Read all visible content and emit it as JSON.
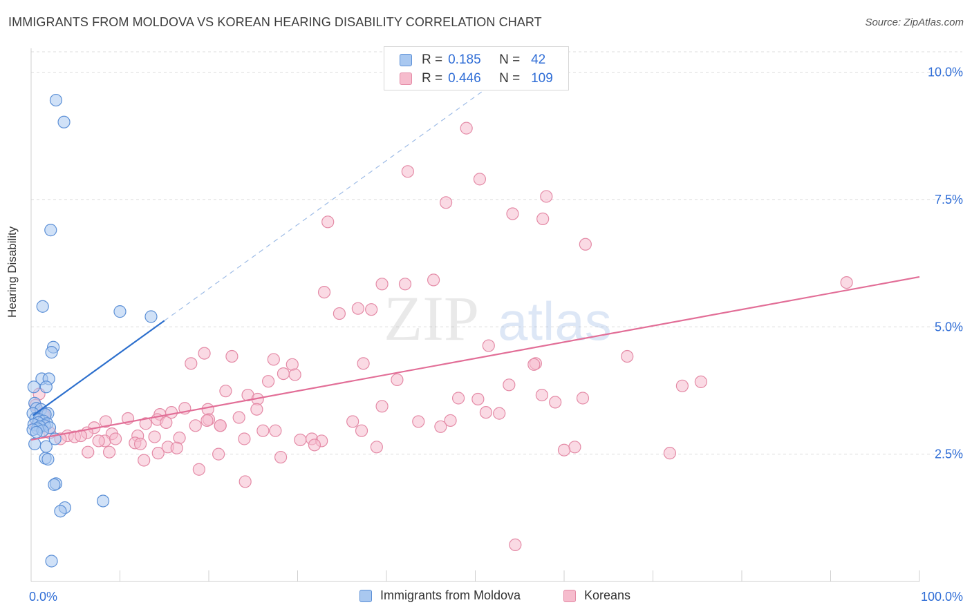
{
  "header": {
    "title": "IMMIGRANTS FROM MOLDOVA VS KOREAN HEARING DISABILITY CORRELATION CHART",
    "source": "Source: ZipAtlas.com"
  },
  "watermark": {
    "zip": "ZIP",
    "atlas": "atlas"
  },
  "legend_box": {
    "rows": [
      {
        "r_label": "R =",
        "r_value": "0.185",
        "n_label": "N =",
        "n_value": "42"
      },
      {
        "r_label": "R =",
        "r_value": "0.446",
        "n_label": "N =",
        "n_value": "109"
      }
    ]
  },
  "colors": {
    "blue_fill": "#a9c8f0",
    "blue_stroke": "#5b8fd6",
    "blue_line": "#2c6fcd",
    "pink_fill": "#f6bccd",
    "pink_stroke": "#e48aa6",
    "pink_line": "#e26e97",
    "grid": "#dcdcdc",
    "tick_label": "#2f6dd6"
  },
  "chart_data": {
    "type": "scatter",
    "title": "IMMIGRANTS FROM MOLDOVA VS KOREAN HEARING DISABILITY CORRELATION CHART",
    "xlabel": "",
    "ylabel": "Hearing Disability",
    "xlim": [
      0,
      100
    ],
    "ylim": [
      0,
      10.4
    ],
    "x_tick_labels": [
      "0.0%",
      "100.0%"
    ],
    "y_ticks": [
      2.5,
      5.0,
      7.5,
      10.0
    ],
    "y_tick_labels": [
      "2.5%",
      "5.0%",
      "7.5%",
      "10.0%"
    ],
    "series": [
      {
        "name": "Immigrants from Moldova",
        "R": 0.185,
        "N": 42,
        "trend": {
          "x0": 0.2,
          "y0": 3.26,
          "x1": 15.0,
          "y1": 5.12,
          "dash_to_x": 53.0,
          "dash_to_y": 9.9
        },
        "points": [
          [
            2.8,
            9.45
          ],
          [
            3.7,
            9.02
          ],
          [
            2.2,
            6.9
          ],
          [
            1.3,
            5.4
          ],
          [
            10.0,
            5.3
          ],
          [
            13.5,
            5.2
          ],
          [
            2.5,
            4.6
          ],
          [
            2.3,
            4.5
          ],
          [
            1.2,
            3.98
          ],
          [
            2.0,
            3.98
          ],
          [
            1.7,
            3.82
          ],
          [
            0.3,
            3.82
          ],
          [
            0.4,
            3.5
          ],
          [
            0.6,
            3.4
          ],
          [
            1.1,
            3.38
          ],
          [
            0.2,
            3.3
          ],
          [
            1.9,
            3.3
          ],
          [
            1.6,
            3.28
          ],
          [
            0.5,
            3.2
          ],
          [
            0.9,
            3.18
          ],
          [
            1.4,
            3.15
          ],
          [
            0.8,
            3.12
          ],
          [
            1.8,
            3.1
          ],
          [
            0.3,
            3.08
          ],
          [
            1.5,
            3.06
          ],
          [
            1.0,
            3.04
          ],
          [
            2.1,
            3.02
          ],
          [
            0.7,
            3.0
          ],
          [
            0.2,
            2.98
          ],
          [
            1.3,
            2.96
          ],
          [
            0.6,
            2.93
          ],
          [
            2.7,
            2.8
          ],
          [
            0.4,
            2.7
          ],
          [
            1.7,
            2.65
          ],
          [
            1.6,
            2.42
          ],
          [
            1.9,
            2.4
          ],
          [
            2.8,
            1.92
          ],
          [
            2.6,
            1.9
          ],
          [
            8.1,
            1.58
          ],
          [
            3.8,
            1.45
          ],
          [
            3.3,
            1.38
          ],
          [
            2.3,
            0.4
          ]
        ]
      },
      {
        "name": "Koreans",
        "R": 0.446,
        "N": 109,
        "trend": {
          "x0": 0.0,
          "y0": 2.78,
          "x1": 100.0,
          "y1": 5.98
        },
        "points": [
          [
            49.0,
            8.9
          ],
          [
            42.4,
            8.05
          ],
          [
            50.5,
            7.9
          ],
          [
            58.0,
            7.56
          ],
          [
            46.7,
            7.44
          ],
          [
            54.2,
            7.22
          ],
          [
            57.6,
            7.12
          ],
          [
            33.4,
            7.06
          ],
          [
            62.4,
            6.62
          ],
          [
            91.8,
            5.87
          ],
          [
            45.3,
            5.92
          ],
          [
            42.1,
            5.84
          ],
          [
            39.5,
            5.84
          ],
          [
            33.0,
            5.68
          ],
          [
            36.8,
            5.36
          ],
          [
            38.3,
            5.34
          ],
          [
            34.7,
            5.26
          ],
          [
            51.5,
            4.63
          ],
          [
            19.5,
            4.48
          ],
          [
            22.6,
            4.42
          ],
          [
            67.1,
            4.42
          ],
          [
            27.3,
            4.36
          ],
          [
            18.0,
            4.28
          ],
          [
            37.4,
            4.28
          ],
          [
            29.4,
            4.26
          ],
          [
            56.8,
            4.28
          ],
          [
            56.6,
            4.26
          ],
          [
            28.4,
            4.08
          ],
          [
            29.7,
            4.06
          ],
          [
            26.7,
            3.93
          ],
          [
            41.2,
            3.96
          ],
          [
            53.8,
            3.86
          ],
          [
            73.3,
            3.84
          ],
          [
            75.4,
            3.92
          ],
          [
            21.9,
            3.74
          ],
          [
            24.4,
            3.66
          ],
          [
            57.5,
            3.66
          ],
          [
            62.1,
            3.6
          ],
          [
            48.1,
            3.6
          ],
          [
            50.3,
            3.58
          ],
          [
            25.5,
            3.58
          ],
          [
            59.0,
            3.52
          ],
          [
            39.5,
            3.44
          ],
          [
            19.9,
            3.38
          ],
          [
            25.4,
            3.38
          ],
          [
            17.3,
            3.4
          ],
          [
            14.5,
            3.28
          ],
          [
            15.8,
            3.32
          ],
          [
            51.2,
            3.32
          ],
          [
            52.7,
            3.3
          ],
          [
            20.0,
            3.18
          ],
          [
            23.4,
            3.22
          ],
          [
            14.2,
            3.18
          ],
          [
            10.9,
            3.2
          ],
          [
            1.4,
            3.3
          ],
          [
            8.4,
            3.14
          ],
          [
            15.2,
            3.12
          ],
          [
            19.8,
            3.16
          ],
          [
            36.2,
            3.14
          ],
          [
            43.6,
            3.14
          ],
          [
            47.2,
            3.16
          ],
          [
            12.9,
            3.1
          ],
          [
            18.5,
            3.06
          ],
          [
            21.3,
            3.06
          ],
          [
            46.1,
            3.04
          ],
          [
            37.2,
            2.96
          ],
          [
            21.3,
            3.06
          ],
          [
            26.1,
            2.96
          ],
          [
            27.5,
            2.96
          ],
          [
            7.1,
            3.02
          ],
          [
            6.3,
            2.92
          ],
          [
            9.1,
            2.9
          ],
          [
            12.0,
            2.86
          ],
          [
            4.1,
            2.86
          ],
          [
            4.9,
            2.84
          ],
          [
            5.6,
            2.86
          ],
          [
            3.3,
            2.8
          ],
          [
            13.9,
            2.84
          ],
          [
            16.7,
            2.82
          ],
          [
            24.0,
            2.8
          ],
          [
            30.3,
            2.78
          ],
          [
            31.6,
            2.8
          ],
          [
            32.7,
            2.76
          ],
          [
            8.3,
            2.76
          ],
          [
            11.7,
            2.72
          ],
          [
            12.3,
            2.7
          ],
          [
            7.6,
            2.76
          ],
          [
            9.5,
            2.8
          ],
          [
            31.9,
            2.68
          ],
          [
            38.9,
            2.64
          ],
          [
            15.4,
            2.64
          ],
          [
            16.4,
            2.62
          ],
          [
            61.2,
            2.64
          ],
          [
            60.0,
            2.58
          ],
          [
            6.4,
            2.54
          ],
          [
            8.8,
            2.54
          ],
          [
            14.3,
            2.52
          ],
          [
            21.1,
            2.5
          ],
          [
            28.1,
            2.44
          ],
          [
            71.9,
            2.52
          ],
          [
            12.7,
            2.38
          ],
          [
            18.9,
            2.2
          ],
          [
            24.1,
            1.96
          ],
          [
            54.5,
            0.72
          ],
          [
            0.6,
            3.06
          ],
          [
            2.1,
            2.92
          ],
          [
            0.5,
            3.46
          ],
          [
            0.9,
            3.68
          ],
          [
            1.5,
            3.24
          ]
        ]
      }
    ]
  },
  "bottom_legend": {
    "items": [
      {
        "label": "Immigrants from Moldova"
      },
      {
        "label": "Koreans"
      }
    ]
  }
}
